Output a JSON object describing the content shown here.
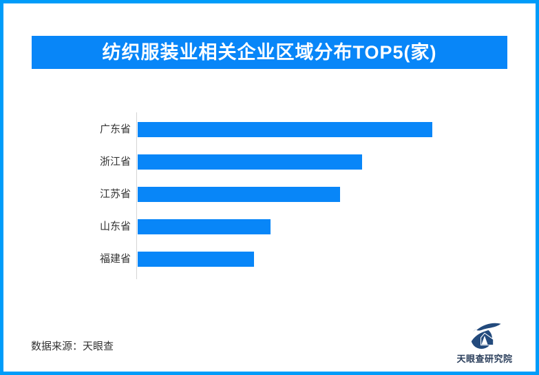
{
  "header": {
    "title": "纺织服装业相关企业区域分布TOP5(家)"
  },
  "chart_data": {
    "type": "bar",
    "orientation": "horizontal",
    "title": "纺织服装业相关企业区域分布TOP5(家)",
    "categories": [
      "广东省",
      "浙江省",
      "江苏省",
      "山东省",
      "福建省"
    ],
    "values_pct_of_max": [
      100,
      76.2,
      68.7,
      45.1,
      39.5
    ],
    "value_labels_shown": false,
    "order": "descending_top_to_bottom",
    "bar_color": "#0886F8",
    "axis_line_color": "#D4D4D4",
    "label_color": "#333333",
    "legend": "none",
    "grid": "off"
  },
  "footer": {
    "source_text": "数据来源：天眼查",
    "logo_text": "天眼查研究院"
  },
  "colors": {
    "frame_border": "#009CF9",
    "banner_bg": "#0886F8",
    "banner_text": "#FFFFFF",
    "bar": "#0886F8",
    "logo_navy": "#234A7C",
    "background": "#FFFFFF"
  }
}
